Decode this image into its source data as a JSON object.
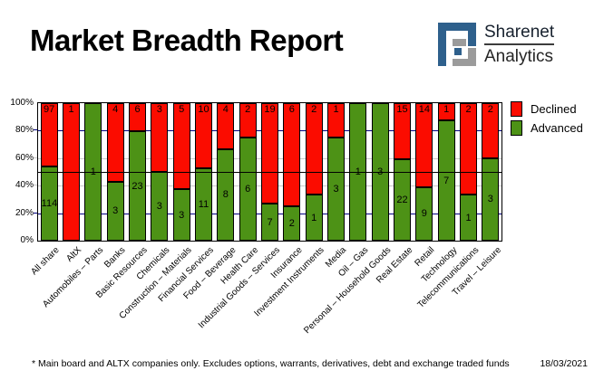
{
  "header": {
    "title": "Market Breadth Report",
    "logo": {
      "brand_top": "Sharenet",
      "brand_bottom": "Analytics",
      "blue": "#2e608c",
      "gray": "#9b9b9b"
    }
  },
  "chart_data": {
    "type": "bar",
    "subtype": "stacked-100-percent-column",
    "title": "",
    "xlabel": "",
    "ylabel": "",
    "ylim": [
      0,
      100
    ],
    "y_ticks": [
      "100%",
      "80%",
      "60%",
      "40%",
      "20%",
      "0%"
    ],
    "grid": "on",
    "gridline_pcts": [
      80,
      60,
      40,
      20
    ],
    "gridline_colors": {
      "80": "#000080",
      "60": "#c9c9c9",
      "40": "#c9c9c9",
      "20": "#000080"
    },
    "reference_line_pct": 50,
    "legend_position": "top-right-outside",
    "categories": [
      "All share",
      "AltX",
      "Automobiles – Parts",
      "Banks",
      "Basic Resources",
      "Chemicals",
      "Construction – Materials",
      "Financial Services",
      "Food – Beverage",
      "Health Care",
      "Industrial Goods – Services",
      "Insurance",
      "Investment Instruments",
      "Media",
      "Oil – Gas",
      "Personal – Household Goods",
      "Real Estate",
      "Retail",
      "Technology",
      "Telecommunications",
      "Travel – Leisure"
    ],
    "series": [
      {
        "name": "Declined",
        "color": "#fb0c00",
        "values": [
          97,
          1,
          0,
          4,
          6,
          3,
          5,
          10,
          4,
          2,
          19,
          6,
          2,
          1,
          0,
          0,
          15,
          14,
          1,
          2,
          2
        ]
      },
      {
        "name": "Advanced",
        "color": "#4d9216",
        "values": [
          114,
          0,
          1,
          3,
          23,
          3,
          3,
          11,
          8,
          6,
          7,
          2,
          1,
          3,
          1,
          3,
          22,
          9,
          7,
          1,
          3
        ]
      }
    ]
  },
  "footer": {
    "note": "* Main board and ALTX companies only. Excludes options, warrants, derivatives, debt and exchange traded funds",
    "date": "18/03/2021"
  }
}
